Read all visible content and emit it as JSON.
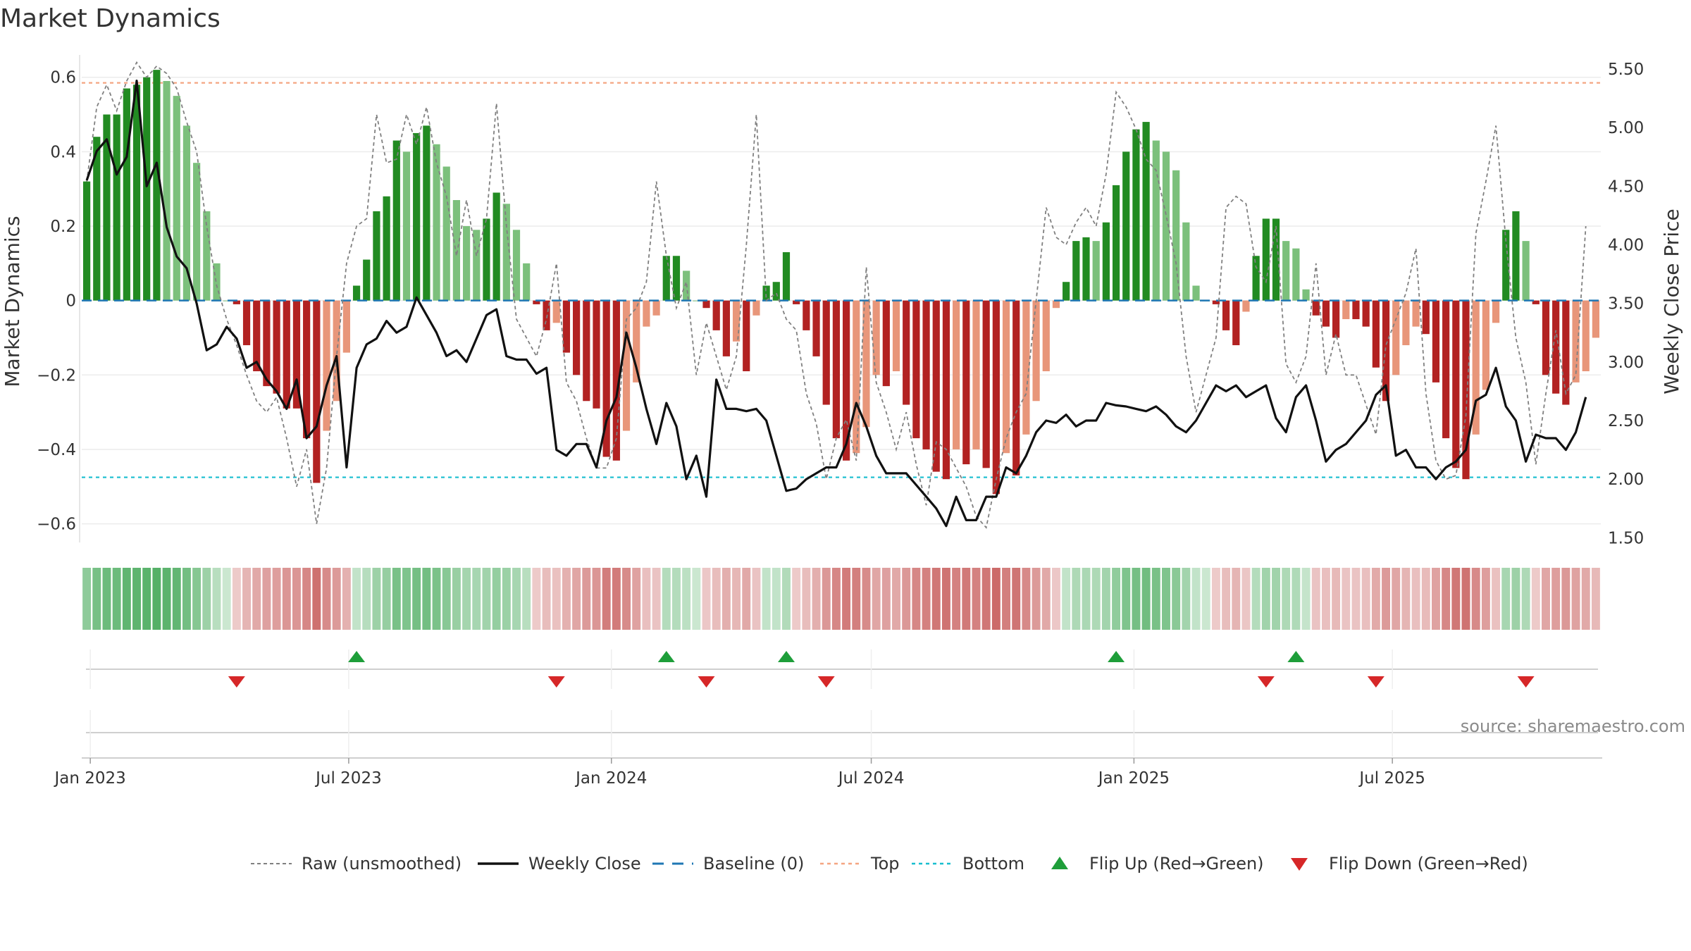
{
  "chart_data": {
    "type": "bar",
    "title": "Market Dynamics",
    "ylabel_left": "Market Dynamics",
    "ylabel_right": "Weekly Close Price",
    "source_text": "source: sharemaestro.com",
    "left_axis": {
      "range": [
        -0.65,
        0.66
      ],
      "ticks": [
        0.6,
        0.4,
        0.2,
        0,
        -0.2,
        -0.4,
        -0.6
      ],
      "tick_labels": [
        "0.6",
        "0.4",
        "0.2",
        "0",
        "−0.2",
        "−0.4",
        "−0.6"
      ]
    },
    "right_axis": {
      "range": [
        1.46,
        5.62
      ],
      "ticks": [
        5.5,
        5.0,
        4.5,
        4.0,
        3.5,
        3.0,
        2.5,
        2.0,
        1.5
      ],
      "tick_labels": [
        "5.50",
        "5.00",
        "4.50",
        "4.00",
        "3.50",
        "3.00",
        "2.50",
        "2.00",
        "1.50"
      ]
    },
    "x_axis": {
      "start_date": "2022-12-26",
      "tick_dates": [
        "2023-01-01",
        "2023-07-01",
        "2024-01-01",
        "2024-07-01",
        "2025-01-01",
        "2025-07-01"
      ],
      "tick_labels": [
        "Jan 2023",
        "Jul 2023",
        "Jan 2024",
        "Jul 2024",
        "Jan 2025",
        "Jul 2025"
      ]
    },
    "reference_lines": {
      "top": 0.585,
      "bottom": -0.475,
      "baseline": 0
    },
    "colors": {
      "pos_strong": "#228B22",
      "pos_weak": "#7CC07C",
      "neg_strong": "#B22222",
      "neg_weak": "#E8967A",
      "close": "#111111",
      "raw": "#808080",
      "top": "#F4A582",
      "bottom": "#17BECF",
      "baseline": "#1F77B4",
      "flip_up": "#1E9E3A",
      "flip_down": "#D62728",
      "strip_pos": "#2E9E44",
      "strip_neg": "#B8312F"
    },
    "series": [
      {
        "name": "Market Dynamics",
        "values": [
          0.32,
          0.44,
          0.5,
          0.5,
          0.57,
          0.58,
          0.6,
          0.62,
          0.59,
          0.55,
          0.47,
          0.37,
          0.24,
          0.1,
          0.0,
          -0.01,
          -0.12,
          -0.19,
          -0.23,
          -0.25,
          -0.29,
          -0.29,
          -0.37,
          -0.49,
          -0.35,
          -0.27,
          -0.14,
          0.04,
          0.11,
          0.24,
          0.28,
          0.43,
          0.4,
          0.45,
          0.47,
          0.42,
          0.36,
          0.27,
          0.2,
          0.19,
          0.22,
          0.29,
          0.26,
          0.19,
          0.1,
          -0.01,
          -0.08,
          -0.06,
          -0.14,
          -0.2,
          -0.27,
          -0.29,
          -0.42,
          -0.43,
          -0.35,
          -0.22,
          -0.07,
          -0.04,
          0.12,
          0.12,
          0.08,
          0.0,
          -0.02,
          -0.08,
          -0.15,
          -0.11,
          -0.19,
          -0.04,
          0.04,
          0.05,
          0.13,
          -0.01,
          -0.08,
          -0.15,
          -0.28,
          -0.37,
          -0.43,
          -0.41,
          -0.34,
          -0.2,
          -0.23,
          -0.19,
          -0.28,
          -0.37,
          -0.4,
          -0.46,
          -0.48,
          -0.4,
          -0.44,
          -0.4,
          -0.45,
          -0.52,
          -0.41,
          -0.47,
          -0.36,
          -0.27,
          -0.19,
          -0.02,
          0.05,
          0.16,
          0.17,
          0.16,
          0.21,
          0.31,
          0.4,
          0.46,
          0.48,
          0.43,
          0.4,
          0.35,
          0.21,
          0.04,
          0.0,
          -0.01,
          -0.08,
          -0.12,
          -0.03,
          0.12,
          0.22,
          0.22,
          0.16,
          0.14,
          0.03,
          -0.04,
          -0.07,
          -0.1,
          -0.05,
          -0.05,
          -0.07,
          -0.18,
          -0.27,
          -0.2,
          -0.12,
          -0.07,
          -0.09,
          -0.22,
          -0.37,
          -0.45,
          -0.48,
          -0.36,
          -0.24,
          -0.06,
          0.19,
          0.24,
          0.16,
          -0.01,
          -0.2,
          -0.25,
          -0.28,
          -0.22,
          -0.19,
          -0.1
        ]
      },
      {
        "name": "Raw (unsmoothed)",
        "values": [
          0.32,
          0.52,
          0.58,
          0.51,
          0.59,
          0.64,
          0.6,
          0.63,
          0.61,
          0.57,
          0.48,
          0.4,
          0.2,
          0.04,
          -0.05,
          -0.12,
          -0.2,
          -0.27,
          -0.3,
          -0.26,
          -0.37,
          -0.5,
          -0.4,
          -0.6,
          -0.45,
          -0.15,
          0.1,
          0.2,
          0.22,
          0.5,
          0.37,
          0.38,
          0.5,
          0.42,
          0.52,
          0.37,
          0.28,
          0.12,
          0.27,
          0.12,
          0.22,
          0.53,
          0.2,
          -0.05,
          -0.1,
          -0.15,
          -0.05,
          0.1,
          -0.22,
          -0.27,
          -0.37,
          -0.45,
          -0.45,
          -0.37,
          -0.05,
          -0.02,
          0.05,
          0.32,
          0.12,
          -0.02,
          0.05,
          -0.2,
          -0.06,
          -0.15,
          -0.24,
          -0.15,
          0.15,
          0.5,
          0.0,
          0.02,
          -0.05,
          -0.08,
          -0.25,
          -0.33,
          -0.48,
          -0.37,
          -0.32,
          -0.43,
          0.09,
          -0.22,
          -0.3,
          -0.4,
          -0.3,
          -0.44,
          -0.55,
          -0.38,
          -0.4,
          -0.45,
          -0.5,
          -0.58,
          -0.61,
          -0.48,
          -0.37,
          -0.3,
          -0.25,
          0.0,
          0.25,
          0.17,
          0.15,
          0.21,
          0.25,
          0.2,
          0.34,
          0.56,
          0.52,
          0.46,
          0.38,
          0.35,
          0.23,
          0.1,
          -0.15,
          -0.3,
          -0.2,
          -0.1,
          0.25,
          0.28,
          0.26,
          0.09,
          0.05,
          0.2,
          -0.17,
          -0.22,
          -0.15,
          0.1,
          -0.2,
          -0.09,
          -0.2,
          -0.2,
          -0.28,
          -0.36,
          -0.12,
          -0.05,
          0.02,
          0.14,
          -0.25,
          -0.43,
          -0.48,
          -0.47,
          -0.31,
          0.18,
          0.32,
          0.47,
          0.16,
          -0.1,
          -0.22,
          -0.44,
          -0.25,
          -0.08,
          -0.25,
          -0.2,
          0.2
        ]
      },
      {
        "name": "Weekly Close",
        "values": [
          4.55,
          4.8,
          4.9,
          4.6,
          4.75,
          5.4,
          4.5,
          4.7,
          4.15,
          3.9,
          3.8,
          3.5,
          3.1,
          3.15,
          3.3,
          3.2,
          2.95,
          3.0,
          2.85,
          2.75,
          2.6,
          2.85,
          2.35,
          2.45,
          2.8,
          3.05,
          2.1,
          2.95,
          3.15,
          3.2,
          3.35,
          3.25,
          3.3,
          3.55,
          3.4,
          3.25,
          3.05,
          3.1,
          3.0,
          3.2,
          3.4,
          3.45,
          3.05,
          3.02,
          3.02,
          2.9,
          2.95,
          2.25,
          2.2,
          2.3,
          2.3,
          2.1,
          2.5,
          2.7,
          3.25,
          2.95,
          2.6,
          2.3,
          2.65,
          2.45,
          2.0,
          2.2,
          1.85,
          2.85,
          2.6,
          2.6,
          2.58,
          2.6,
          2.5,
          2.2,
          1.9,
          1.92,
          2.0,
          2.05,
          2.1,
          2.1,
          2.3,
          2.65,
          2.45,
          2.2,
          2.05,
          2.05,
          2.05,
          1.95,
          1.85,
          1.75,
          1.6,
          1.85,
          1.65,
          1.65,
          1.85,
          1.85,
          2.1,
          2.05,
          2.2,
          2.4,
          2.5,
          2.48,
          2.55,
          2.45,
          2.5,
          2.5,
          2.65,
          2.63,
          2.62,
          2.6,
          2.58,
          2.62,
          2.55,
          2.45,
          2.4,
          2.5,
          2.65,
          2.8,
          2.75,
          2.8,
          2.7,
          2.75,
          2.8,
          2.52,
          2.4,
          2.7,
          2.8,
          2.5,
          2.15,
          2.25,
          2.3,
          2.4,
          2.5,
          2.72,
          2.8,
          2.2,
          2.25,
          2.1,
          2.1,
          2.0,
          2.1,
          2.15,
          2.25,
          2.67,
          2.72,
          2.95,
          2.62,
          2.5,
          2.15,
          2.38,
          2.35,
          2.35,
          2.25,
          2.4,
          2.7
        ]
      },
      {
        "name": "Baseline (0)"
      },
      {
        "name": "Top"
      },
      {
        "name": "Bottom"
      },
      {
        "name": "Flip Up (Red→Green)",
        "indices": [
          27,
          58,
          70,
          103,
          121
        ]
      },
      {
        "name": "Flip Down (Green→Red)",
        "indices": [
          15,
          47,
          62,
          74,
          118,
          129,
          144
        ]
      }
    ],
    "legend": {
      "placement": "bottom-center",
      "items": [
        {
          "label": "Raw (unsmoothed)",
          "type": "raw"
        },
        {
          "label": "Weekly Close",
          "type": "close"
        },
        {
          "label": "Baseline (0)",
          "type": "baseline"
        },
        {
          "label": "Top",
          "type": "top"
        },
        {
          "label": "Bottom",
          "type": "bottom"
        },
        {
          "label": "Flip Up (Red→Green)",
          "type": "flip_up"
        },
        {
          "label": "Flip Down (Green→Red)",
          "type": "flip_down"
        }
      ]
    }
  }
}
